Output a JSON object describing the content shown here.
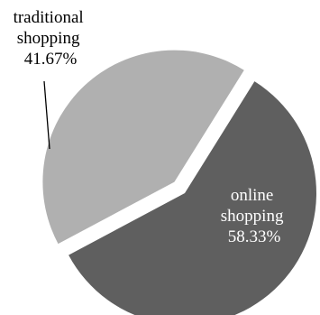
{
  "chart_data": {
    "type": "pie",
    "title": "",
    "slices": [
      {
        "name_lines": [
          "online",
          "shopping"
        ],
        "value": 58.33,
        "percent_label": "58.33%",
        "color": "#5f5f5f",
        "label_color": "#ffffff",
        "label_position": "inside"
      },
      {
        "name_lines": [
          "traditional",
          "shopping"
        ],
        "value": 41.67,
        "percent_label": "41.67%",
        "color": "#b0b0b0",
        "label_color": "#000000",
        "label_position": "outside-top-left",
        "exploded": true
      }
    ],
    "legend": "none"
  }
}
